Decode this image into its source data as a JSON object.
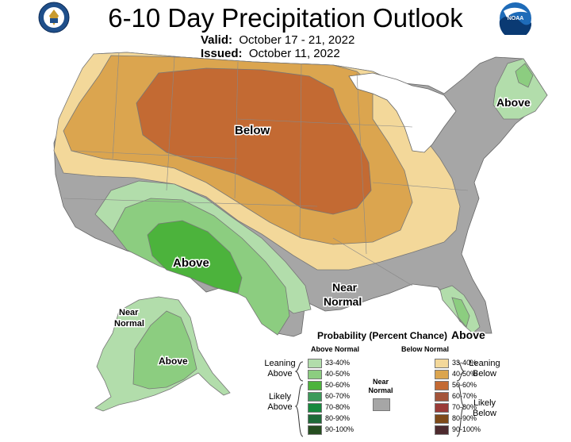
{
  "title": "6-10 Day Precipitation Outlook",
  "valid_label": "Valid:",
  "valid_value": "October 17 - 21, 2022",
  "issued_label": "Issued:",
  "issued_value": "October 11, 2022",
  "map_labels": {
    "below": "Below",
    "above_sw": "Above",
    "above_ne": "Above",
    "above_fl": "Above",
    "above_ak": "Above",
    "near_normal_se_1": "Near",
    "near_normal_se_2": "Normal",
    "near_normal_ak_1": "Near",
    "near_normal_ak_2": "Normal"
  },
  "legend": {
    "title": "Probability (Percent Chance)",
    "above_header": "Above Normal",
    "below_header": "Below Normal",
    "near_label_1": "Near",
    "near_label_2": "Normal",
    "leaning_above_1": "Leaning",
    "leaning_above_2": "Above",
    "likely_above_1": "Likely",
    "likely_above_2": "Above",
    "leaning_below_1": "Leaning",
    "leaning_below_2": "Below",
    "likely_below_1": "Likely",
    "likely_below_2": "Below",
    "above": [
      {
        "label": "33-40%",
        "color": "#b2ddab"
      },
      {
        "label": "40-50%",
        "color": "#8ccd80"
      },
      {
        "label": "50-60%",
        "color": "#4cb33c"
      },
      {
        "label": "60-70%",
        "color": "#3c9a5a"
      },
      {
        "label": "70-80%",
        "color": "#17893d"
      },
      {
        "label": "80-90%",
        "color": "#1e6a38"
      },
      {
        "label": "90-100%",
        "color": "#254d20"
      }
    ],
    "below": [
      {
        "label": "33-40%",
        "color": "#f3d89a"
      },
      {
        "label": "40-50%",
        "color": "#dba54f"
      },
      {
        "label": "50-60%",
        "color": "#c36a33"
      },
      {
        "label": "60-70%",
        "color": "#a3543a"
      },
      {
        "label": "70-80%",
        "color": "#9a3b38"
      },
      {
        "label": "80-90%",
        "color": "#7e4a19"
      },
      {
        "label": "90-100%",
        "color": "#4d2a2e"
      }
    ],
    "near_color": "#a6a6a6"
  },
  "logos": {
    "left": "doc-seal-icon",
    "right": "noaa-logo-icon"
  }
}
